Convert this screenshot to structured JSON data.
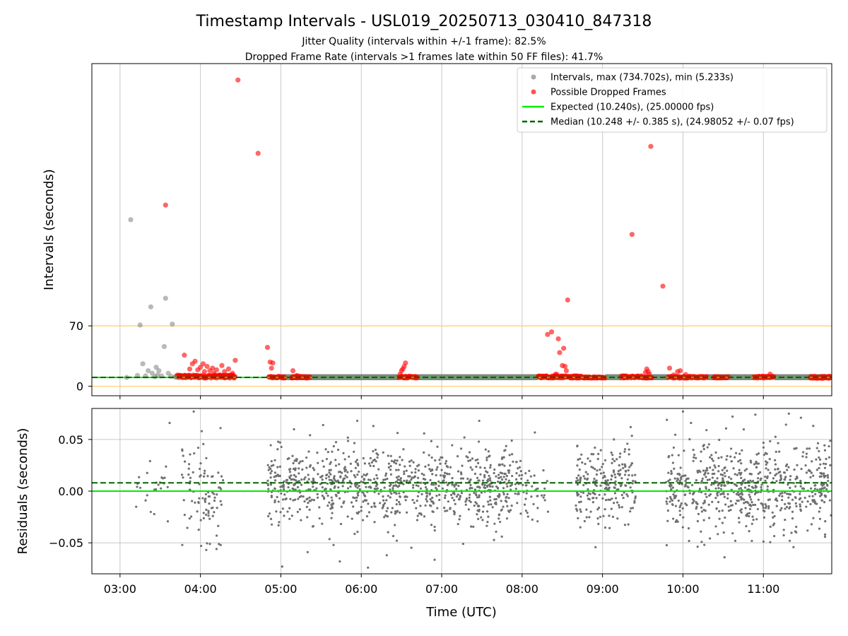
{
  "figure": {
    "title": "Timestamp Intervals - USL019_20250713_030410_847318",
    "subtitle_1": "Jitter Quality (intervals within +/-1 frame): 82.5%",
    "subtitle_2": "Dropped Frame Rate (intervals >1 frames late within 50 FF files): 41.7%"
  },
  "chart_data": [
    {
      "id": "intervals",
      "type": "scatter",
      "ylabel": "Intervals (seconds)",
      "xlabel": "",
      "x_format": "HH:MM (UTC)",
      "xlim": [
        "02:39",
        "11:51"
      ],
      "ylim": [
        -11,
        374
      ],
      "grid": true,
      "legend_position": "top-right",
      "x_ticks": [
        "03:00",
        "04:00",
        "05:00",
        "06:00",
        "07:00",
        "08:00",
        "09:00",
        "10:00",
        "11:00"
      ],
      "y_ticks": [
        0,
        70
      ],
      "y_tick_labels": [
        "0",
        "70"
      ],
      "reference_lines": [
        {
          "name": "Expected (10.240s), (25.00000 fps)",
          "y": 10.24,
          "color": "#00ee00",
          "style": "solid"
        },
        {
          "name": "Median (10.248 +/- 0.385 s), (24.98052 +/- 0.07 fps)",
          "y": 10.248,
          "color": "#006400",
          "style": "dashed"
        },
        {
          "name": "upper threshold",
          "y": 70,
          "color": "#ffcc66",
          "style": "solid"
        },
        {
          "name": "lower threshold",
          "y": 0,
          "color": "#ffcc66",
          "style": "solid"
        }
      ],
      "series": [
        {
          "name": "Intervals, max (734.702s), min (5.233s)",
          "color": "#808080",
          "points": [
            [
              "03:05",
              10.2
            ],
            [
              "03:08",
              193.0
            ],
            [
              "03:13",
              12.5
            ],
            [
              "03:15",
              71.0
            ],
            [
              "03:17",
              26.0
            ],
            [
              "03:19",
              12.0
            ],
            [
              "03:21",
              18.0
            ],
            [
              "03:23",
              92.0
            ],
            [
              "03:24",
              15.0
            ],
            [
              "03:26",
              11.0
            ],
            [
              "03:27",
              22.0
            ],
            [
              "03:28",
              13.0
            ],
            [
              "03:29",
              18.0
            ],
            [
              "03:31",
              12.0
            ],
            [
              "03:33",
              46.0
            ],
            [
              "03:34",
              102.0
            ],
            [
              "03:36",
              15.0
            ],
            [
              "03:38",
              11.5
            ],
            [
              "03:39",
              72.0
            ],
            [
              "03:41",
              10.8
            ]
          ]
        },
        {
          "name": "Possible Dropped Frames",
          "color": "#ff0000",
          "points": [
            [
              "03:34",
              210.0
            ],
            [
              "03:48",
              36.0
            ],
            [
              "03:52",
              20.0
            ],
            [
              "03:54",
              26.0
            ],
            [
              "03:56",
              29.0
            ],
            [
              "03:58",
              19.0
            ],
            [
              "04:00",
              22.0
            ],
            [
              "04:02",
              26.0
            ],
            [
              "04:03",
              17.0
            ],
            [
              "04:05",
              23.0
            ],
            [
              "04:07",
              18.0
            ],
            [
              "04:09",
              21.0
            ],
            [
              "04:10",
              15.0
            ],
            [
              "04:12",
              19.0
            ],
            [
              "04:14",
              13.0
            ],
            [
              "04:16",
              24.0
            ],
            [
              "04:18",
              17.0
            ],
            [
              "04:21",
              20.0
            ],
            [
              "04:22",
              13.0
            ],
            [
              "04:24",
              15.0
            ],
            [
              "04:26",
              30.0
            ],
            [
              "04:28",
              355.0
            ],
            [
              "04:43",
              270.0
            ],
            [
              "04:50",
              45.0
            ],
            [
              "04:52",
              28.0
            ],
            [
              "04:53",
              21.0
            ],
            [
              "04:54",
              27.0
            ],
            [
              "05:09",
              18.0
            ],
            [
              "05:12",
              12.5
            ],
            [
              "06:29",
              14.0
            ],
            [
              "06:30",
              18.0
            ],
            [
              "06:31",
              20.0
            ],
            [
              "06:32",
              23.0
            ],
            [
              "06:33",
              27.0
            ],
            [
              "08:18",
              12.0
            ],
            [
              "08:19",
              60.0
            ],
            [
              "08:22",
              63.0
            ],
            [
              "08:24",
              12.0
            ],
            [
              "08:25",
              14.0
            ],
            [
              "08:26",
              13.5
            ],
            [
              "08:27",
              55.0
            ],
            [
              "08:28",
              39.0
            ],
            [
              "08:30",
              24.0
            ],
            [
              "08:31",
              44.0
            ],
            [
              "08:32",
              23.0
            ],
            [
              "08:33",
              18.0
            ],
            [
              "08:34",
              100.0
            ],
            [
              "08:50",
              10.8
            ],
            [
              "09:16",
              12.0
            ],
            [
              "09:22",
              176.0
            ],
            [
              "09:29",
              12.0
            ],
            [
              "09:32",
              16.0
            ],
            [
              "09:33",
              20.0
            ],
            [
              "09:34",
              17.0
            ],
            [
              "09:35",
              14.0
            ],
            [
              "09:36",
              278.0
            ],
            [
              "09:45",
              116.0
            ],
            [
              "09:50",
              21.0
            ],
            [
              "09:53",
              13.0
            ],
            [
              "09:56",
              17.0
            ],
            [
              "09:58",
              18.0
            ],
            [
              "10:02",
              13.5
            ],
            [
              "10:34",
              11.0
            ],
            [
              "11:05",
              14.0
            ]
          ],
          "bands": [
            {
              "from": "03:42",
              "to": "04:26",
              "y_min": 9.5,
              "y_max": 13.0
            },
            {
              "from": "04:51",
              "to": "05:03",
              "y_min": 9.5,
              "y_max": 11.5
            },
            {
              "from": "05:08",
              "to": "05:22",
              "y_min": 9.5,
              "y_max": 11.5
            },
            {
              "from": "06:28",
              "to": "06:42",
              "y_min": 9.5,
              "y_max": 11.5
            },
            {
              "from": "08:12",
              "to": "08:44",
              "y_min": 9.5,
              "y_max": 12.0
            },
            {
              "from": "08:40",
              "to": "09:02",
              "y_min": 9.5,
              "y_max": 11.0
            },
            {
              "from": "09:14",
              "to": "09:27",
              "y_min": 9.5,
              "y_max": 12.0
            },
            {
              "from": "09:27",
              "to": "09:37",
              "y_min": 9.5,
              "y_max": 11.0
            },
            {
              "from": "09:49",
              "to": "10:18",
              "y_min": 9.5,
              "y_max": 11.5
            },
            {
              "from": "10:23",
              "to": "10:33",
              "y_min": 9.5,
              "y_max": 11.0
            },
            {
              "from": "10:53",
              "to": "11:08",
              "y_min": 9.5,
              "y_max": 11.5
            },
            {
              "from": "11:35",
              "to": "11:50",
              "y_min": 9.0,
              "y_max": 11.5
            }
          ]
        }
      ],
      "grey_bands": [
        {
          "from": "05:02",
          "to": "06:28",
          "y_min": 9.5,
          "y_max": 11.5
        },
        {
          "from": "06:42",
          "to": "08:12",
          "y_min": 9.5,
          "y_max": 11.5
        },
        {
          "from": "09:02",
          "to": "09:14",
          "y_min": 9.5,
          "y_max": 11.5
        },
        {
          "from": "09:37",
          "to": "09:49",
          "y_min": 9.5,
          "y_max": 11.5
        },
        {
          "from": "10:18",
          "to": "10:53",
          "y_min": 9.5,
          "y_max": 11.5
        },
        {
          "from": "11:08",
          "to": "11:51",
          "y_min": 9.5,
          "y_max": 11.5
        }
      ],
      "legend": [
        {
          "label": "Intervals, max (734.702s), min (5.233s)",
          "kind": "marker",
          "color": "#a9a9a9"
        },
        {
          "label": "Possible Dropped Frames",
          "kind": "marker",
          "color": "#ff5555"
        },
        {
          "label": "Expected (10.240s), (25.00000 fps)",
          "kind": "line",
          "color": "#00ee00"
        },
        {
          "label": "Median (10.248 +/- 0.385 s), (24.98052 +/- 0.07 fps)",
          "kind": "dashed",
          "color": "#006400"
        }
      ]
    },
    {
      "id": "residuals",
      "type": "scatter",
      "ylabel": "Residuals (seconds)",
      "xlabel": "Time (UTC)",
      "xlim": [
        "02:39",
        "11:51"
      ],
      "ylim": [
        -0.08,
        0.08
      ],
      "grid": true,
      "x_ticks": [
        "03:00",
        "04:00",
        "05:00",
        "06:00",
        "07:00",
        "08:00",
        "09:00",
        "10:00",
        "11:00"
      ],
      "y_ticks": [
        0.05,
        0.0,
        -0.05
      ],
      "y_tick_labels": [
        "0.05",
        "0.00",
        "−0.05"
      ],
      "reference_lines": [
        {
          "name": "Expected",
          "y": 0.0,
          "color": "#00ee00",
          "style": "solid"
        },
        {
          "name": "Median",
          "y": 0.008,
          "color": "#006400",
          "style": "dashed"
        }
      ],
      "series": [
        {
          "name": "Residuals",
          "color": "#707070",
          "segments": [
            {
              "from": "03:12",
              "to": "03:40",
              "spread": 0.022,
              "center": 0.005,
              "count": 24
            },
            {
              "from": "03:46",
              "to": "04:17",
              "spread": 0.03,
              "center": -0.005,
              "count": 90
            },
            {
              "from": "04:50",
              "to": "07:53",
              "spread": 0.024,
              "center": 0.006,
              "count": 900
            },
            {
              "from": "07:53",
              "to": "08:20",
              "spread": 0.02,
              "center": 0.004,
              "count": 60
            },
            {
              "from": "08:40",
              "to": "09:25",
              "spread": 0.026,
              "center": 0.007,
              "count": 220
            },
            {
              "from": "09:47",
              "to": "11:51",
              "spread": 0.028,
              "center": 0.002,
              "count": 650
            }
          ],
          "outliers": [
            [
              "03:37",
              0.066
            ],
            [
              "03:55",
              0.077
            ],
            [
              "04:01",
              0.058
            ],
            [
              "04:15",
              0.061
            ],
            [
              "04:12",
              -0.056
            ],
            [
              "05:01",
              -0.073
            ],
            [
              "05:20",
              -0.059
            ],
            [
              "05:44",
              -0.068
            ],
            [
              "05:57",
              0.068
            ],
            [
              "06:05",
              -0.074
            ],
            [
              "06:09",
              0.063
            ],
            [
              "06:19",
              -0.062
            ],
            [
              "07:16",
              -0.051
            ],
            [
              "07:28",
              0.068
            ],
            [
              "09:21",
              0.062
            ],
            [
              "09:48",
              0.069
            ],
            [
              "10:00",
              0.077
            ],
            [
              "10:06",
              0.066
            ],
            [
              "10:31",
              -0.064
            ],
            [
              "10:54",
              0.074
            ],
            [
              "11:19",
              0.075
            ],
            [
              "11:28",
              0.071
            ]
          ]
        }
      ]
    }
  ]
}
